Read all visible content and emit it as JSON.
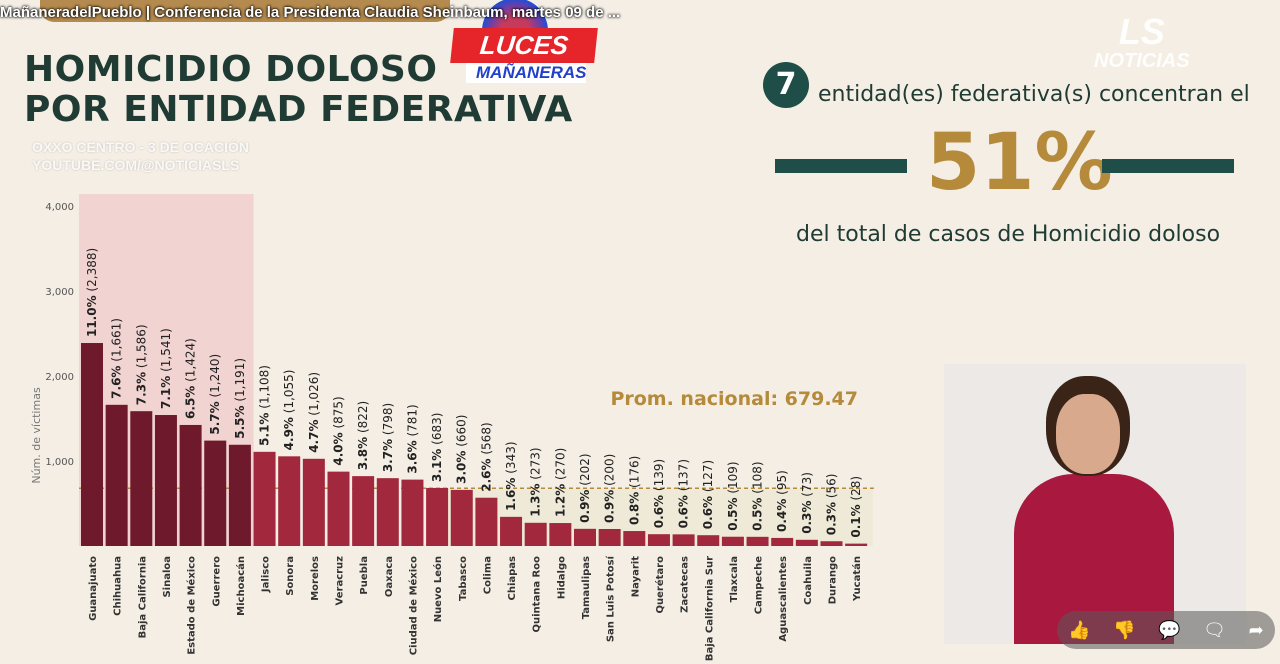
{
  "video_title": "MañaneradelPueblo | Conferencia de la Presidenta Claudia Sheinbaum, martes 09 de ...",
  "slide": {
    "title_line1": "HOMICIDIO DOLOSO",
    "title_line2": "POR ENTIDAD FEDERATIVA"
  },
  "overlay_logo": {
    "top": "LUCES",
    "bottom": "MAÑANERAS"
  },
  "watermark": {
    "line1": "OXXO CENTRO - 3 DE OCACIÓN",
    "line2": "YOUTUBE.COM/@NOTICIASLS"
  },
  "channel_logo": {
    "top": "LS",
    "bottom": "NOTICIAS"
  },
  "callout": {
    "count": "7",
    "text1": "entidad(es) federativa(s) concentran el",
    "percent": "51%",
    "text2": "del total de casos de Homicidio doloso"
  },
  "actions": [
    {
      "name": "like",
      "icon": "thumbs-up-icon",
      "glyph": "👍"
    },
    {
      "name": "dislike",
      "icon": "thumbs-down-icon",
      "glyph": "👎"
    },
    {
      "name": "comments",
      "icon": "comment-icon",
      "glyph": "💬"
    },
    {
      "name": "chat",
      "icon": "chat-icon",
      "glyph": "🗨"
    },
    {
      "name": "share",
      "icon": "share-icon",
      "glyph": "➦"
    }
  ],
  "chart_data": {
    "type": "bar",
    "ylabel": "Núm. de víctimas",
    "ylim": [
      0,
      4000
    ],
    "yticks": [
      "1,000",
      "2,000",
      "3,000",
      "4,000"
    ],
    "ytick_values": [
      1000,
      2000,
      3000,
      4000
    ],
    "average_label": "Prom. nacional: 679.47",
    "average": 679.47,
    "highlighted_count": 7,
    "colors": {
      "highlight": "#6e1a2c",
      "normal": "#a1283d",
      "highlight_bg": "#f1d3d1",
      "below_avg_bg": "#eeead7",
      "avg_line": "#b58a3a"
    },
    "categories": [
      "Guanajuato",
      "Chihuahua",
      "Baja California",
      "Sinaloa",
      "Estado de México",
      "Guerrero",
      "Michoacán",
      "Jalisco",
      "Sonora",
      "Morelos",
      "Veracruz",
      "Puebla",
      "Oaxaca",
      "Ciudad de México",
      "Nuevo León",
      "Tabasco",
      "Colima",
      "Chiapas",
      "Quintana Roo",
      "Hidalgo",
      "Tamaulipas",
      "San Luis Potosí",
      "Nayarit",
      "Querétaro",
      "Zacatecas",
      "Baja California Sur",
      "Tlaxcala",
      "Campeche",
      "Aguascalientes",
      "Coahuila",
      "Durango",
      "Yucatán"
    ],
    "values": [
      2388,
      1661,
      1586,
      1541,
      1424,
      1240,
      1191,
      1108,
      1055,
      1026,
      875,
      822,
      798,
      781,
      683,
      660,
      568,
      343,
      273,
      270,
      202,
      200,
      176,
      139,
      137,
      127,
      109,
      108,
      95,
      73,
      56,
      28
    ],
    "percents": [
      "11.0%",
      "7.6%",
      "7.3%",
      "7.1%",
      "6.5%",
      "5.7%",
      "5.5%",
      "5.1%",
      "4.9%",
      "4.7%",
      "4.0%",
      "3.8%",
      "3.7%",
      "3.6%",
      "3.1%",
      "3.0%",
      "2.6%",
      "1.6%",
      "1.3%",
      "1.2%",
      "0.9%",
      "0.9%",
      "0.8%",
      "0.6%",
      "0.6%",
      "0.6%",
      "0.5%",
      "0.5%",
      "0.4%",
      "0.3%",
      "0.3%",
      "0.1%"
    ],
    "value_labels": [
      "(2,388)",
      "(1,661)",
      "(1,586)",
      "(1,541)",
      "(1,424)",
      "(1,240)",
      "(1,191)",
      "(1,108)",
      "(1,055)",
      "(1,026)",
      "(875)",
      "(822)",
      "(798)",
      "(781)",
      "(683)",
      "(660)",
      "(568)",
      "(343)",
      "(273)",
      "(270)",
      "(202)",
      "(200)",
      "(176)",
      "(139)",
      "(137)",
      "(127)",
      "(109)",
      "(108)",
      "(95)",
      "(73)",
      "(56)",
      "(28)"
    ]
  }
}
